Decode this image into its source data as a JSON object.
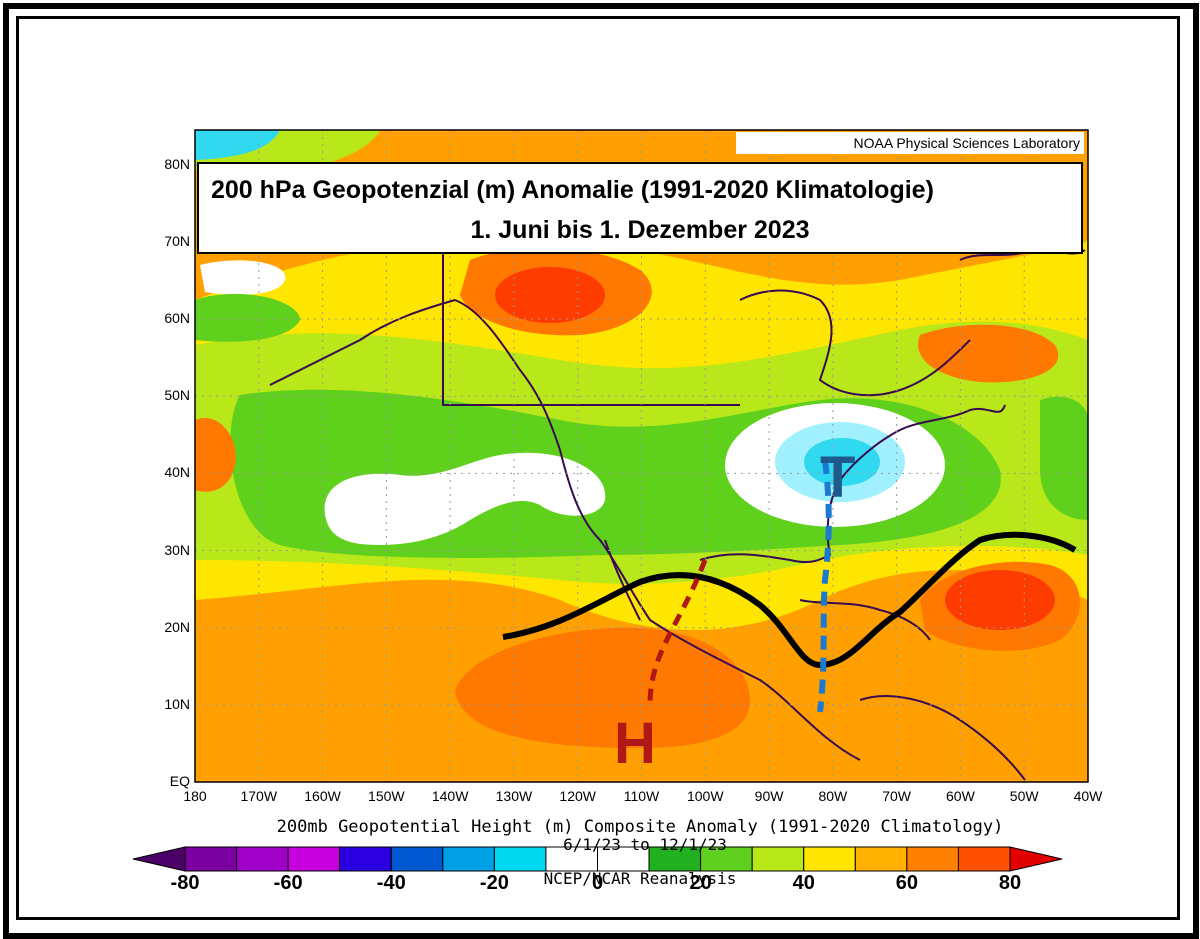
{
  "title": {
    "line1": "200 hPa Geopotenzial (m) Anomalie (1991-2020 Klimatologie)",
    "line2": "1. Juni bis 1. Dezember 2023"
  },
  "credit": "NOAA Physical Sciences Laboratory",
  "caption": {
    "line1": "200mb Geopotential Height (m) Composite Anomaly (1991-2020 Climatology)",
    "line2": "6/1/23 to 12/1/23",
    "line3": "NCEP/NCAR Reanalysis"
  },
  "lat_labels": [
    "80N",
    "70N",
    "60N",
    "50N",
    "40N",
    "30N",
    "20N",
    "10N",
    "EQ"
  ],
  "lon_labels": [
    "180",
    "170W",
    "160W",
    "150W",
    "140W",
    "130W",
    "120W",
    "110W",
    "100W",
    "90W",
    "80W",
    "70W",
    "60W",
    "50W",
    "40W"
  ],
  "colorbar": {
    "labels": [
      "-80",
      "-60",
      "-40",
      "-20",
      "0",
      "20",
      "40",
      "60",
      "80"
    ],
    "colors": [
      "#4a0066",
      "#7b00a0",
      "#a000c8",
      "#c800e0",
      "#2a00e0",
      "#0058d0",
      "#00a0e6",
      "#00d8f0",
      "#a0f0ff",
      "#ffffff",
      "#ffffff",
      "#20b020",
      "#60d020",
      "#b8e81a",
      "#ffe600",
      "#ffb000",
      "#ff8000",
      "#ff5000",
      "#ff2800",
      "#e00000"
    ]
  },
  "annotations": {
    "low_label": "T",
    "high_label": "H"
  },
  "palette": {
    "orange": "#ffa000",
    "dark_orange": "#ff7800",
    "red": "#ff3c00",
    "yellow": "#ffe600",
    "lime": "#b8e81a",
    "green": "#5fd01c",
    "light_green": "#8cdc1e",
    "white": "#ffffff",
    "cyan": "#a0f0ff",
    "sky": "#30d8f0",
    "land_border": "#3a0a50",
    "trough_line": "#1e7ad0",
    "ridge_line": "#b01818"
  }
}
